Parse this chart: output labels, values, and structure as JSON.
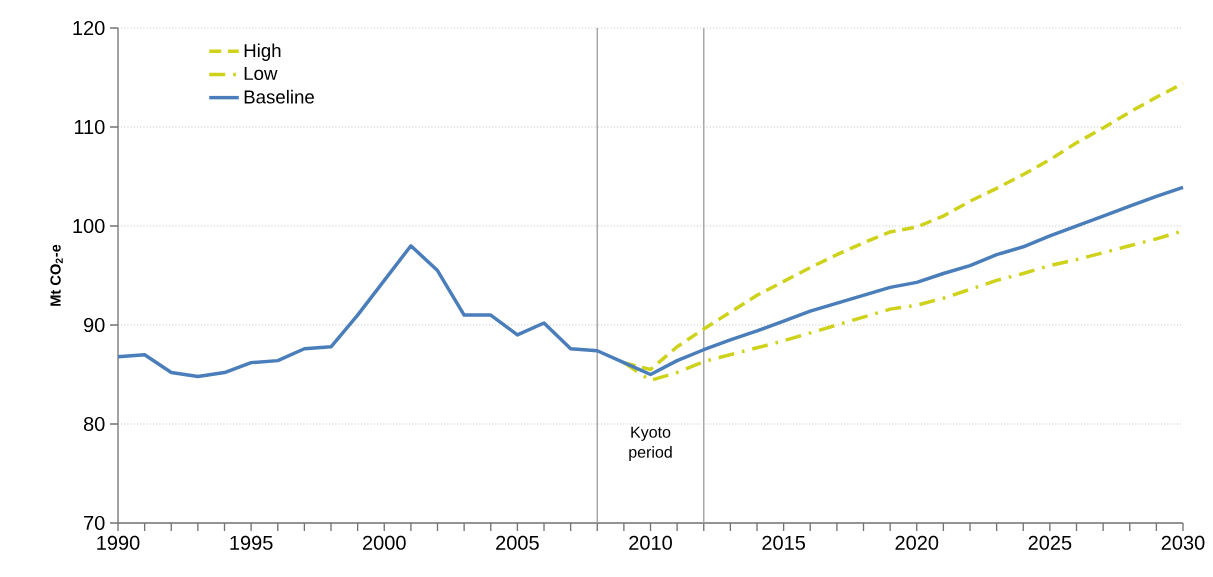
{
  "chart_data": {
    "type": "line",
    "ylabel": "Mt CO$_{2}$-e",
    "xlim": [
      1990,
      2030
    ],
    "xticks": [
      1990,
      1995,
      2000,
      2005,
      2010,
      2015,
      2020,
      2025,
      2030
    ],
    "ylim": [
      70,
      120
    ],
    "yticks": [
      70,
      80,
      90,
      100,
      110,
      120
    ],
    "grid": "y",
    "legend": "top left",
    "series": [
      {
        "name": "High",
        "color": "#cfd21b",
        "line_style": "dashed",
        "x": [
          2009,
          2010,
          2011,
          2012,
          2013,
          2014,
          2015,
          2016,
          2017,
          2018,
          2019,
          2020,
          2021,
          2022,
          2023,
          2024,
          2025,
          2026,
          2027,
          2028,
          2029,
          2030
        ],
        "values": [
          86.2,
          85.5,
          87.8,
          89.6,
          91.3,
          93.0,
          94.4,
          95.8,
          97.1,
          98.3,
          99.4,
          99.9,
          101.0,
          102.5,
          103.8,
          105.2,
          106.7,
          108.4,
          109.9,
          111.5,
          113.0,
          114.4
        ]
      },
      {
        "name": "Low",
        "color": "#cfd21b",
        "line_style": "dashdot",
        "x": [
          2009,
          2010,
          2011,
          2012,
          2013,
          2014,
          2015,
          2016,
          2017,
          2018,
          2019,
          2020,
          2021,
          2022,
          2023,
          2024,
          2025,
          2026,
          2027,
          2028,
          2029,
          2030
        ],
        "values": [
          86.2,
          84.4,
          85.2,
          86.3,
          87.0,
          87.7,
          88.4,
          89.2,
          90.0,
          90.8,
          91.6,
          92.0,
          92.7,
          93.6,
          94.5,
          95.2,
          96.0,
          96.6,
          97.3,
          98.0,
          98.7,
          99.5
        ]
      },
      {
        "name": "Baseline",
        "color": "#4a7ebb",
        "line_style": "solid",
        "x": [
          1990,
          1991,
          1992,
          1993,
          1994,
          1995,
          1996,
          1997,
          1998,
          1999,
          2000,
          2001,
          2002,
          2003,
          2004,
          2005,
          2006,
          2007,
          2008,
          2009,
          2010,
          2011,
          2012,
          2013,
          2014,
          2015,
          2016,
          2017,
          2018,
          2019,
          2020,
          2021,
          2022,
          2023,
          2024,
          2025,
          2026,
          2027,
          2028,
          2029,
          2030
        ],
        "values": [
          86.8,
          87.0,
          85.2,
          84.8,
          85.2,
          86.2,
          86.4,
          87.6,
          87.8,
          91.0,
          94.5,
          98.0,
          95.5,
          91.0,
          91.0,
          89.0,
          90.2,
          87.6,
          87.4,
          86.2,
          85.0,
          86.4,
          87.5,
          88.5,
          89.4,
          90.4,
          91.4,
          92.2,
          93.0,
          93.8,
          94.3,
          95.2,
          96.0,
          97.1,
          97.9,
          99.0,
          100.0,
          101.0,
          102.0,
          103.0,
          103.9
        ]
      }
    ],
    "ref_lines": [
      {
        "axis": "x",
        "value": 2008,
        "color": "#a6a6a6"
      },
      {
        "axis": "x",
        "value": 2012,
        "color": "#a6a6a6"
      }
    ],
    "annotations": [
      "Kyoto period"
    ]
  }
}
